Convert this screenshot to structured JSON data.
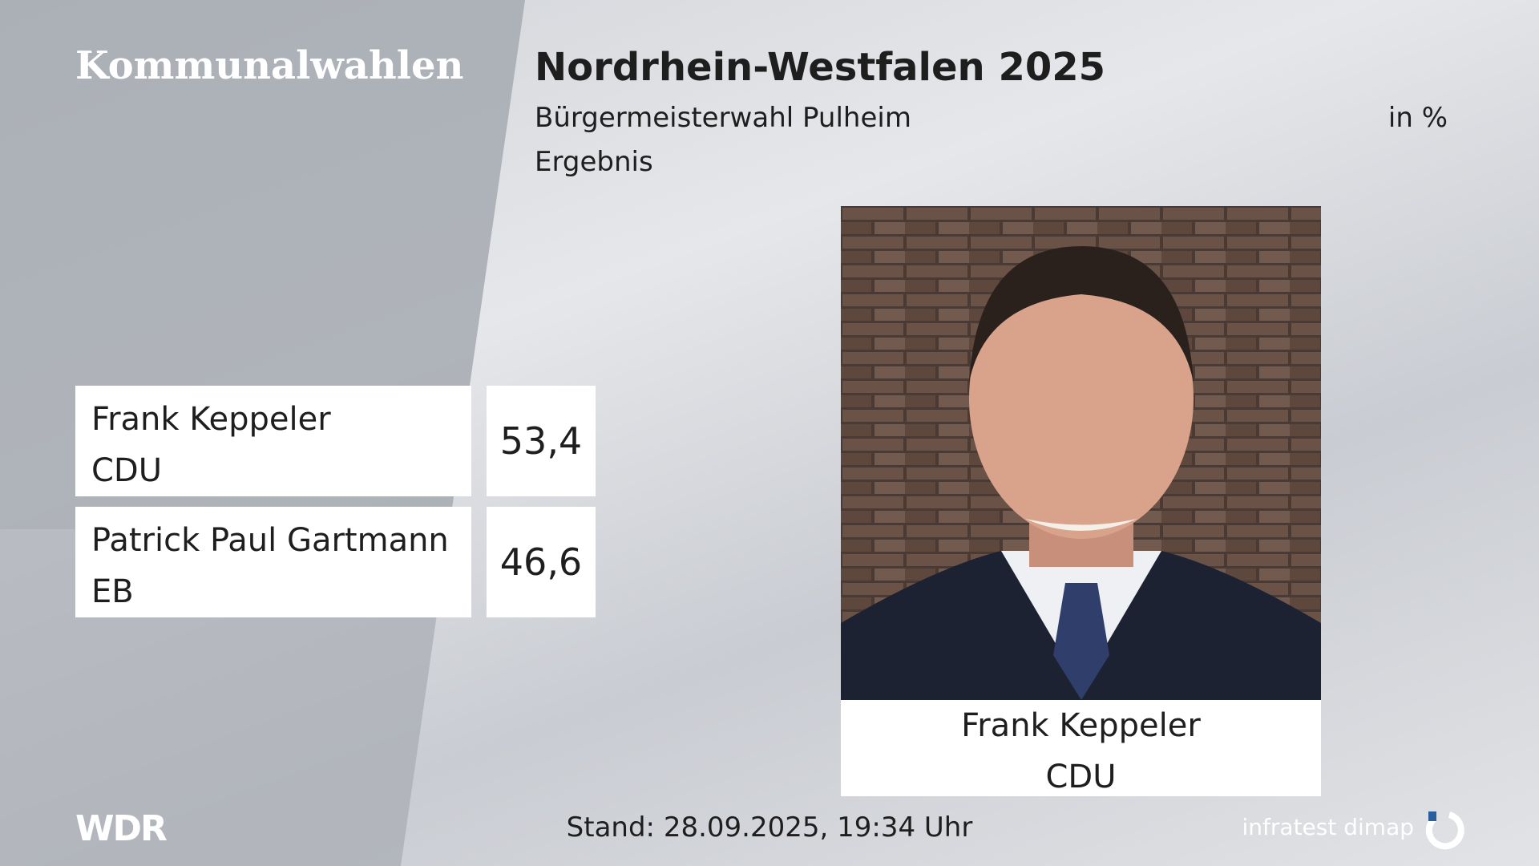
{
  "header": {
    "brand": "Kommunalwahlen",
    "title": "Nordrhein-Westfalen 2025",
    "subtitle": "Bürgermeisterwahl Pulheim",
    "unit": "in %",
    "kind": "Ergebnis"
  },
  "results": [
    {
      "name": "Frank Keppeler",
      "party": "CDU",
      "value": "53,4"
    },
    {
      "name": "Patrick Paul Gartmann",
      "party": "EB",
      "value": "46,6"
    }
  ],
  "photo": {
    "name": "Frank Keppeler",
    "party": "CDU"
  },
  "footer": {
    "logo": "WDR",
    "stand": "Stand: 28.09.2025, 19:34 Uhr",
    "source": "infratest dimap"
  }
}
